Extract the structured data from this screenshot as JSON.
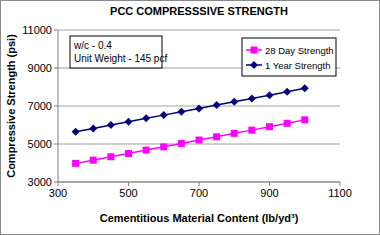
{
  "chart_data": {
    "type": "line",
    "title": "PCC COMPRESSSIVE STRENGTH",
    "x_label": "Cementitious Material Content (lb/yd³)",
    "y_label": "Compressive Strength (psi)",
    "annotations": [
      "w/c - 0.4",
      "Unit Weight - 145 pcf"
    ],
    "x": [
      350,
      400,
      450,
      500,
      550,
      600,
      650,
      700,
      750,
      800,
      850,
      900,
      950,
      1000
    ],
    "series": [
      {
        "name": "28 Day Strength",
        "color": "#ff00ff",
        "marker": "square",
        "line_style": "solid",
        "values": [
          3980,
          4150,
          4330,
          4500,
          4680,
          4850,
          5030,
          5210,
          5380,
          5560,
          5730,
          5910,
          6090,
          6270
        ]
      },
      {
        "name": "1 Year Strength",
        "color": "#000080",
        "marker": "diamond",
        "line_style": "solid",
        "values": [
          5650,
          5820,
          6000,
          6170,
          6350,
          6520,
          6700,
          6870,
          7050,
          7220,
          7400,
          7570,
          7750,
          7930
        ]
      }
    ],
    "xlim": [
      300,
      1100
    ],
    "xticks": [
      300,
      500,
      700,
      900,
      1100
    ],
    "ylim": [
      3000,
      11000
    ],
    "yticks": [
      3000,
      5000,
      7000,
      9000,
      11000
    ],
    "grid": true,
    "legend": "top-right"
  }
}
